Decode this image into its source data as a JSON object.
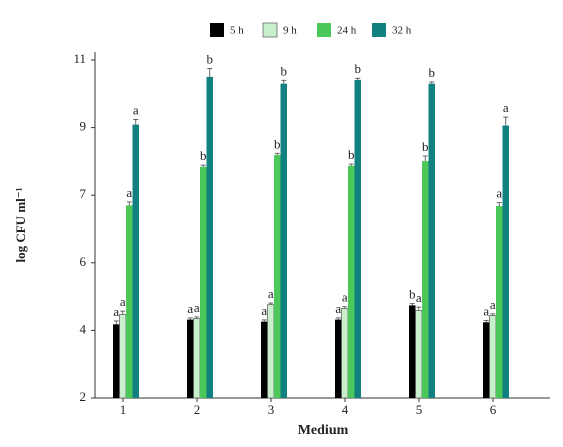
{
  "chart_data": {
    "type": "bar",
    "x_label": "Medium",
    "y_label": "log CFU ml⁻¹",
    "categories": [
      "1",
      "2",
      "3",
      "4",
      "5",
      "6"
    ],
    "ylim": [
      2,
      11
    ],
    "yticks": [
      2,
      4,
      6,
      7,
      9,
      11
    ],
    "legend": "top",
    "series": [
      {
        "name": "5 h",
        "color": "#000000",
        "values": [
          4.18,
          4.32,
          4.26,
          4.32,
          4.74,
          4.24
        ],
        "errors": [
          0.1,
          0.05,
          0.05,
          0.05,
          0.05,
          0.05
        ],
        "labels": [
          "a",
          "a",
          "a",
          "a",
          "b",
          "a"
        ]
      },
      {
        "name": "9 h",
        "color": "#c8f0cc",
        "values": [
          4.47,
          4.35,
          4.76,
          4.65,
          4.59,
          4.44
        ],
        "errors": [
          0.1,
          0.05,
          0.05,
          0.05,
          0.1,
          0.05
        ],
        "labels": [
          "a",
          "a",
          "a",
          "a",
          "a",
          "a"
        ]
      },
      {
        "name": "24 h",
        "color": "#4cc85a",
        "values": [
          6.85,
          7.84,
          8.19,
          7.87,
          8.01,
          6.84
        ],
        "errors": [
          0.05,
          0.05,
          0.05,
          0.05,
          0.15,
          0.05
        ],
        "labels": [
          "a",
          "b",
          "b",
          "b",
          "b",
          "a"
        ]
      },
      {
        "name": "32 h",
        "color": "#118080",
        "values": [
          9.09,
          10.5,
          10.3,
          10.41,
          10.3,
          9.06
        ],
        "errors": [
          0.15,
          0.25,
          0.1,
          0.05,
          0.05,
          0.25
        ],
        "labels": [
          "a",
          "b",
          "b",
          "b",
          "b",
          "a"
        ]
      }
    ]
  }
}
